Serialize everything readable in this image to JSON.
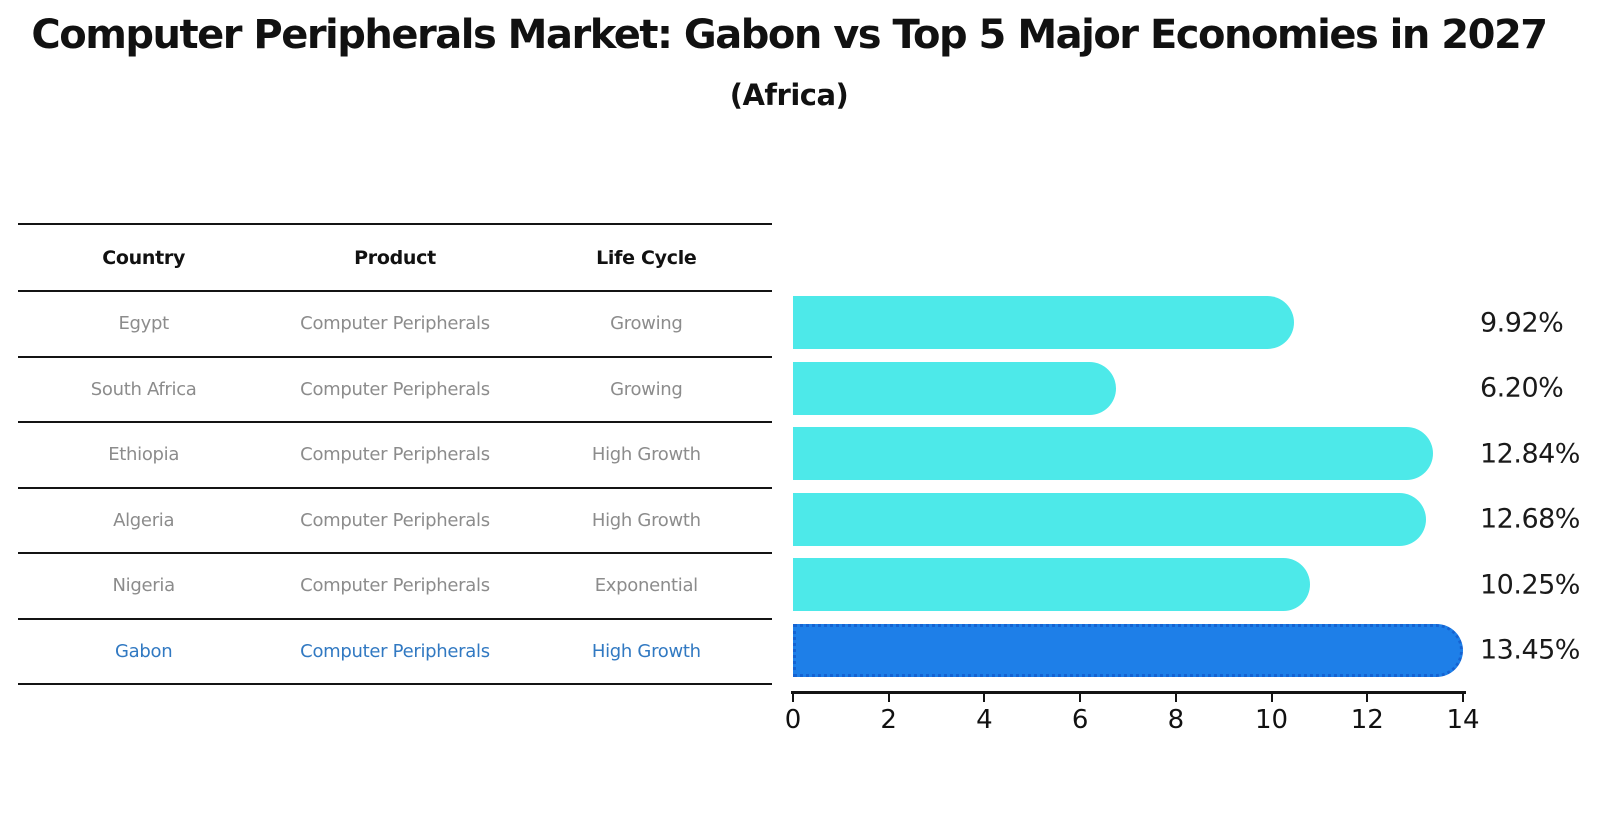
{
  "title": "Computer Peripherals Market: Gabon vs Top 5 Major Economies in 2027",
  "subtitle": "(Africa)",
  "table": {
    "headers": [
      "Country",
      "Product",
      "Life Cycle"
    ],
    "rows": [
      {
        "country": "Egypt",
        "product": "Computer Peripherals",
        "life_cycle": "Growing",
        "highlight": false
      },
      {
        "country": "South Africa",
        "product": "Computer Peripherals",
        "life_cycle": "Growing",
        "highlight": false
      },
      {
        "country": "Ethiopia",
        "product": "Computer Peripherals",
        "life_cycle": "High Growth",
        "highlight": false
      },
      {
        "country": "Algeria",
        "product": "Computer Peripherals",
        "life_cycle": "High Growth",
        "highlight": false
      },
      {
        "country": "Nigeria",
        "product": "Computer Peripherals",
        "life_cycle": "Exponential",
        "highlight": false
      },
      {
        "country": "Gabon",
        "product": "Computer Peripherals",
        "life_cycle": "High Growth",
        "highlight": true
      }
    ]
  },
  "chart_data": {
    "type": "bar",
    "orientation": "horizontal",
    "title": "Computer Peripherals Market: Gabon vs Top 5 Major Economies in 2027 (Africa)",
    "categories": [
      "Egypt",
      "South Africa",
      "Ethiopia",
      "Algeria",
      "Nigeria",
      "Gabon"
    ],
    "values": [
      9.92,
      6.2,
      12.84,
      12.68,
      10.25,
      13.45
    ],
    "value_labels": [
      "9.92%",
      "6.20%",
      "12.84%",
      "12.68%",
      "10.25%",
      "13.45%"
    ],
    "xlim": [
      0,
      14
    ],
    "x_ticks": [
      0,
      2,
      4,
      6,
      8,
      10,
      12,
      14
    ],
    "grid": false,
    "legend": false,
    "highlight_category": "Gabon",
    "bar_color": "#4DE9E9",
    "highlight_color": "#1E7FE8",
    "highlight_border_color": "#1563D2"
  },
  "colors": {
    "row_text": "#8C8C8C",
    "highlight_text": "#3179C2",
    "header_text": "#111111",
    "axis_line": "#141414"
  }
}
